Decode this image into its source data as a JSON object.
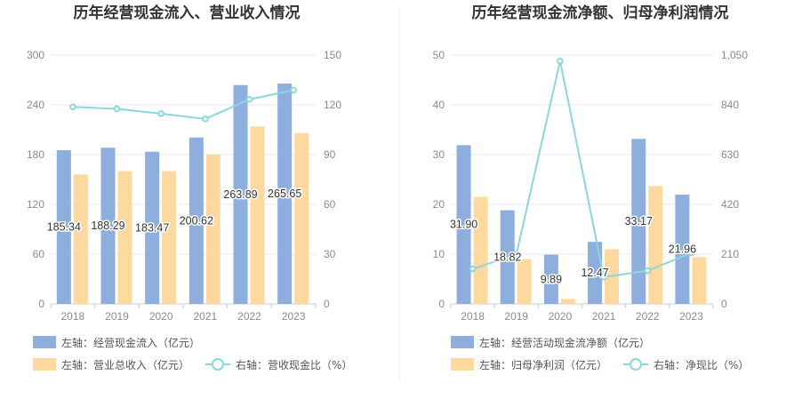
{
  "colors": {
    "bar_primary": "#8eaedd",
    "bar_secondary": "#fdd9a0",
    "line": "#8dd6db",
    "axis_text": "#8a8a8a",
    "grid": "#e6e9f0",
    "title": "#333333"
  },
  "chart_data": [
    {
      "type": "bar",
      "title": "历年经营现金流入、营业收入情况",
      "categories": [
        "2018",
        "2019",
        "2020",
        "2021",
        "2022",
        "2023"
      ],
      "y_left": {
        "ticks": [
          "0",
          "60",
          "120",
          "180",
          "240",
          "300"
        ],
        "range": [
          0,
          300
        ]
      },
      "y_right": {
        "ticks": [
          "0",
          "30",
          "60",
          "90",
          "120",
          "150"
        ],
        "range": [
          0,
          150
        ]
      },
      "grid": true,
      "legend_position": "bottom",
      "series": [
        {
          "name": "左轴：经营现金流入（亿元）",
          "kind": "bar",
          "axis": "left",
          "values": [
            185.34,
            188.29,
            183.47,
            200.62,
            263.89,
            265.65
          ],
          "labels": [
            "185.34",
            "188.29",
            "183.47",
            "200.62",
            "263.89",
            "265.65"
          ]
        },
        {
          "name": "左轴：营业总收入（亿元）",
          "kind": "bar",
          "axis": "left",
          "values": [
            156,
            160,
            160,
            180,
            214,
            206
          ]
        },
        {
          "name": "右轴：营收现金比（%）",
          "kind": "line",
          "axis": "right",
          "values": [
            118.8,
            117.6,
            114.7,
            111.5,
            123.3,
            128.9
          ]
        }
      ]
    },
    {
      "type": "bar",
      "title": "历年经营现金流净额、归母净利润情况",
      "categories": [
        "2018",
        "2019",
        "2020",
        "2021",
        "2022",
        "2023"
      ],
      "y_left": {
        "ticks": [
          "0",
          "10",
          "20",
          "30",
          "40",
          "50"
        ],
        "range": [
          0,
          50
        ]
      },
      "y_right": {
        "ticks": [
          "0",
          "210",
          "420",
          "630",
          "840",
          "1,050"
        ],
        "range": [
          0,
          1050
        ]
      },
      "grid": true,
      "legend_position": "bottom",
      "series": [
        {
          "name": "左轴：经营活动现金流净额（亿元）",
          "kind": "bar",
          "axis": "left",
          "values": [
            31.9,
            18.82,
            9.89,
            12.47,
            33.17,
            21.96
          ],
          "labels": [
            "31.90",
            "18.82",
            "9.89",
            "12.47",
            "33.17",
            "21.96"
          ]
        },
        {
          "name": "左轴：归母净利润（亿元）",
          "kind": "bar",
          "axis": "left",
          "values": [
            21.5,
            9.0,
            1.0,
            11.0,
            23.7,
            9.4
          ]
        },
        {
          "name": "右轴：净现比（%）",
          "kind": "line",
          "axis": "right",
          "values": [
            148,
            209,
            1025,
            113,
            140,
            215
          ]
        }
      ]
    }
  ]
}
